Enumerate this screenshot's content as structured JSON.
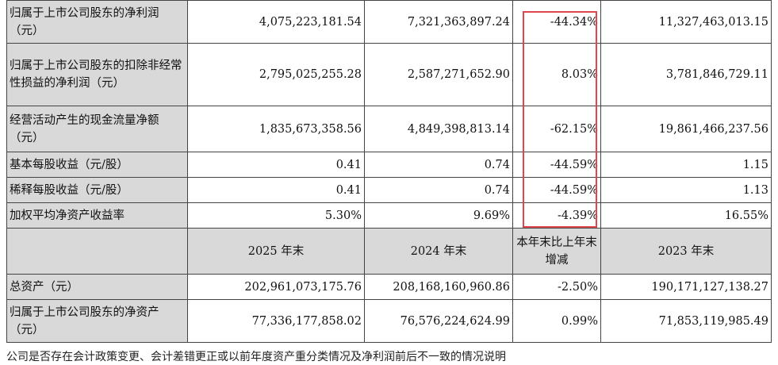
{
  "top_rows": [
    {
      "label": "归属于上市公司股东的净利润（元）",
      "y2025": "4,075,223,181.54",
      "y2024": "7,321,363,897.24",
      "change": "-44.34%",
      "y2023": "11,327,463,013.15"
    },
    {
      "label": "归属于上市公司股东的扣除非经常性损益的净利润（元）",
      "y2025": "2,795,025,255.28",
      "y2024": "2,587,271,652.90",
      "change": "8.03%",
      "y2023": "3,781,846,729.11"
    },
    {
      "label": "经营活动产生的现金流量净额（元）",
      "y2025": "1,835,673,358.56",
      "y2024": "4,849,398,813.14",
      "change": "-62.15%",
      "y2023": "19,861,466,237.56"
    },
    {
      "label": "基本每股收益（元/股）",
      "y2025": "0.41",
      "y2024": "0.74",
      "change": "-44.59%",
      "y2023": "1.15"
    },
    {
      "label": "稀释每股收益（元/股）",
      "y2025": "0.41",
      "y2024": "0.74",
      "change": "-44.59%",
      "y2023": "1.13"
    },
    {
      "label": "加权平均净资产收益率",
      "y2025": "5.30%",
      "y2024": "9.69%",
      "change": "-4.39%",
      "y2023": "16.55%"
    }
  ],
  "header": {
    "col_2025": "2025 年末",
    "col_2024": "2024 年末",
    "col_change": "本年末比上年末增减",
    "col_2023": "2023 年末"
  },
  "bottom_rows": [
    {
      "label": "总资产（元）",
      "y2025": "202,961,073,175.76",
      "y2024": "208,168,160,960.86",
      "change": "-2.50%",
      "y2023": "190,171,127,138.27"
    },
    {
      "label": "归属于上市公司股东的净资产（元）",
      "y2025": "77,336,177,858.02",
      "y2024": "76,576,224,624.99",
      "change": "0.99%",
      "y2023": "71,853,119,985.49"
    }
  ],
  "footnote": "公司是否存在会计政策变更、会计差错更正或以前年度资产重分类情况及净利润前后不一致的情况说明"
}
